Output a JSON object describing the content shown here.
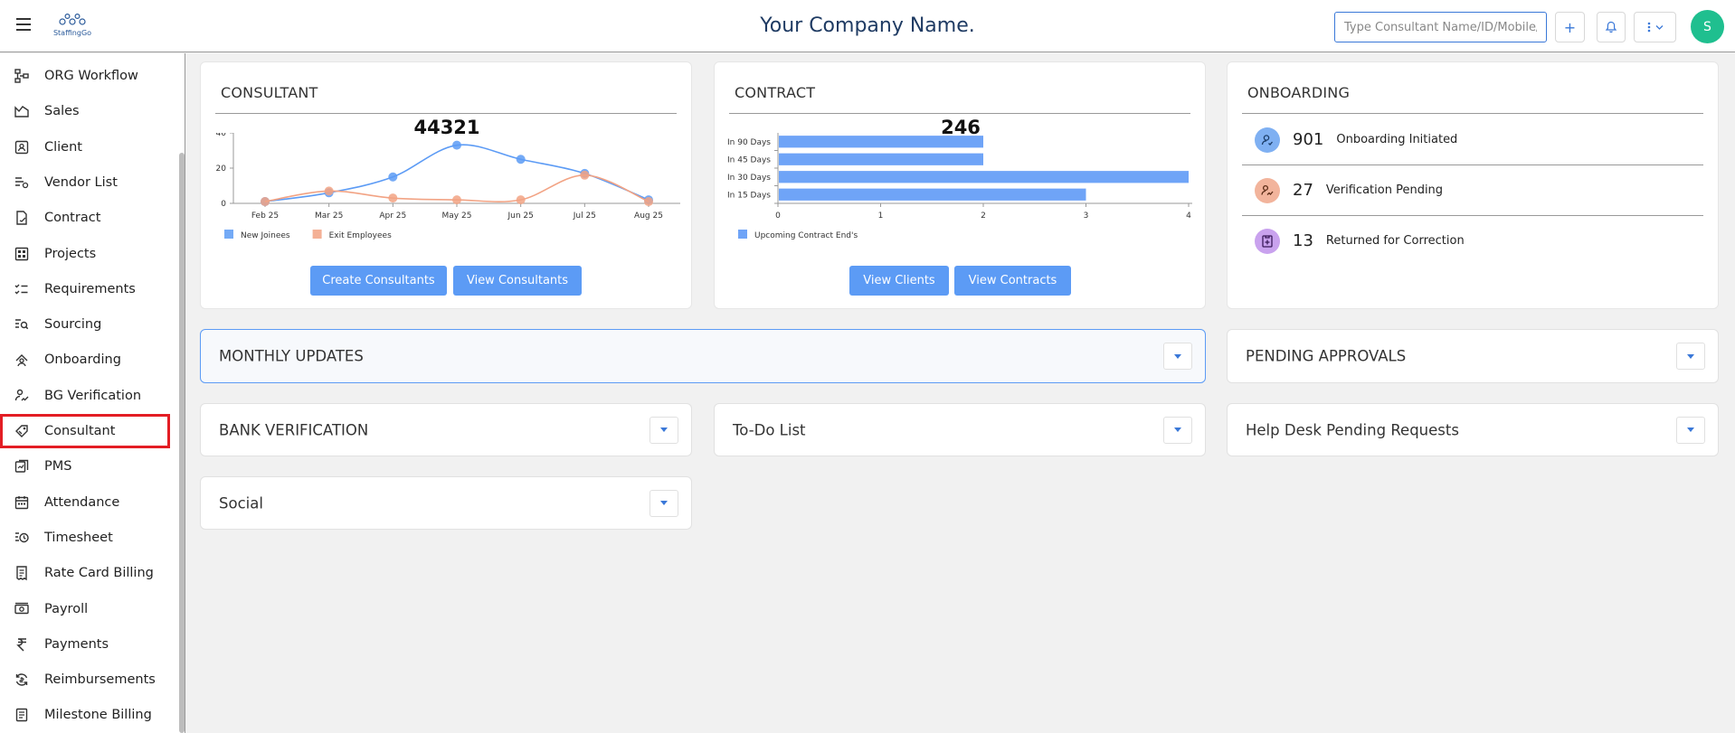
{
  "header": {
    "title": "Your Company Name.",
    "logo_text": "StaffingGo",
    "search_placeholder": "Type Consultant Name/ID/Mobile/...",
    "add_label": "+",
    "avatar_initial": "S"
  },
  "sidebar": {
    "items": [
      {
        "label": "ORG Workflow",
        "icon": "workflow-icon"
      },
      {
        "label": "Sales",
        "icon": "chart-area-icon"
      },
      {
        "label": "Client",
        "icon": "client-card-icon"
      },
      {
        "label": "Vendor List",
        "icon": "vendor-list-icon"
      },
      {
        "label": "Contract",
        "icon": "contract-icon"
      },
      {
        "label": "Projects",
        "icon": "projects-grid-icon"
      },
      {
        "label": "Requirements",
        "icon": "checklist-icon"
      },
      {
        "label": "Sourcing",
        "icon": "sourcing-search-icon"
      },
      {
        "label": "Onboarding",
        "icon": "onboarding-icon"
      },
      {
        "label": "BG Verification",
        "icon": "signature-icon"
      },
      {
        "label": "Consultant",
        "icon": "consultant-tag-icon",
        "active": true
      },
      {
        "label": "PMS",
        "icon": "pms-icon"
      },
      {
        "label": "Attendance",
        "icon": "calendar-icon"
      },
      {
        "label": "Timesheet",
        "icon": "timesheet-clock-icon"
      },
      {
        "label": "Rate Card Billing",
        "icon": "receipt-icon"
      },
      {
        "label": "Payroll",
        "icon": "money-icon"
      },
      {
        "label": "Payments",
        "icon": "rupee-icon"
      },
      {
        "label": "Reimbursements",
        "icon": "refund-icon"
      },
      {
        "label": "Milestone Billing",
        "icon": "milestone-receipt-icon"
      }
    ]
  },
  "consultant_card": {
    "title": "CONSULTANT",
    "total": "44321",
    "create_label": "Create Consultants",
    "view_label": "View Consultants"
  },
  "contract_card": {
    "title": "CONTRACT",
    "total": "246",
    "view_clients_label": "View Clients",
    "view_contracts_label": "View Contracts"
  },
  "onboarding_card": {
    "title": "ONBOARDING",
    "rows": [
      {
        "count": "901",
        "label": "Onboarding Initiated",
        "color": "#7fb0f2"
      },
      {
        "count": "27",
        "label": "Verification Pending",
        "color": "#f2b49c"
      },
      {
        "count": "13",
        "label": "Returned for Correction",
        "color": "#c9a2ee"
      }
    ]
  },
  "panels": {
    "monthly_updates": "MONTHLY UPDATES",
    "pending_approvals": "PENDING APPROVALS",
    "bank_verification": "BANK VERIFICATION",
    "todo_list": "To-Do List",
    "helpdesk": "Help Desk Pending Requests",
    "social": "Social"
  },
  "chart_data": [
    {
      "type": "line",
      "categories": [
        "Feb 25",
        "Mar 25",
        "Apr 25",
        "May 25",
        "Jun 25",
        "Jul 25",
        "Aug 25"
      ],
      "series": [
        {
          "name": "New Joinees",
          "values": [
            1,
            6,
            15,
            33,
            25,
            17,
            2
          ],
          "color": "#5c9bf5"
        },
        {
          "name": "Exit Employees",
          "values": [
            1,
            7,
            3,
            2,
            2,
            16,
            1
          ],
          "color": "#f2a384"
        }
      ],
      "ylim": [
        0,
        40
      ],
      "yticks": [
        0,
        20,
        40
      ],
      "legend": "bottom-left"
    },
    {
      "type": "bar",
      "orientation": "horizontal",
      "categories": [
        "In 90 Days",
        "In 45 Days",
        "In 30 Days",
        "In 15 Days"
      ],
      "series": [
        {
          "name": "Upcoming Contract End's",
          "values": [
            2,
            2,
            4,
            3
          ],
          "color": "#6fa4f7"
        }
      ],
      "xlim": [
        0,
        4
      ],
      "xticks": [
        0,
        1,
        2,
        3,
        4
      ],
      "legend": "bottom-left"
    }
  ]
}
